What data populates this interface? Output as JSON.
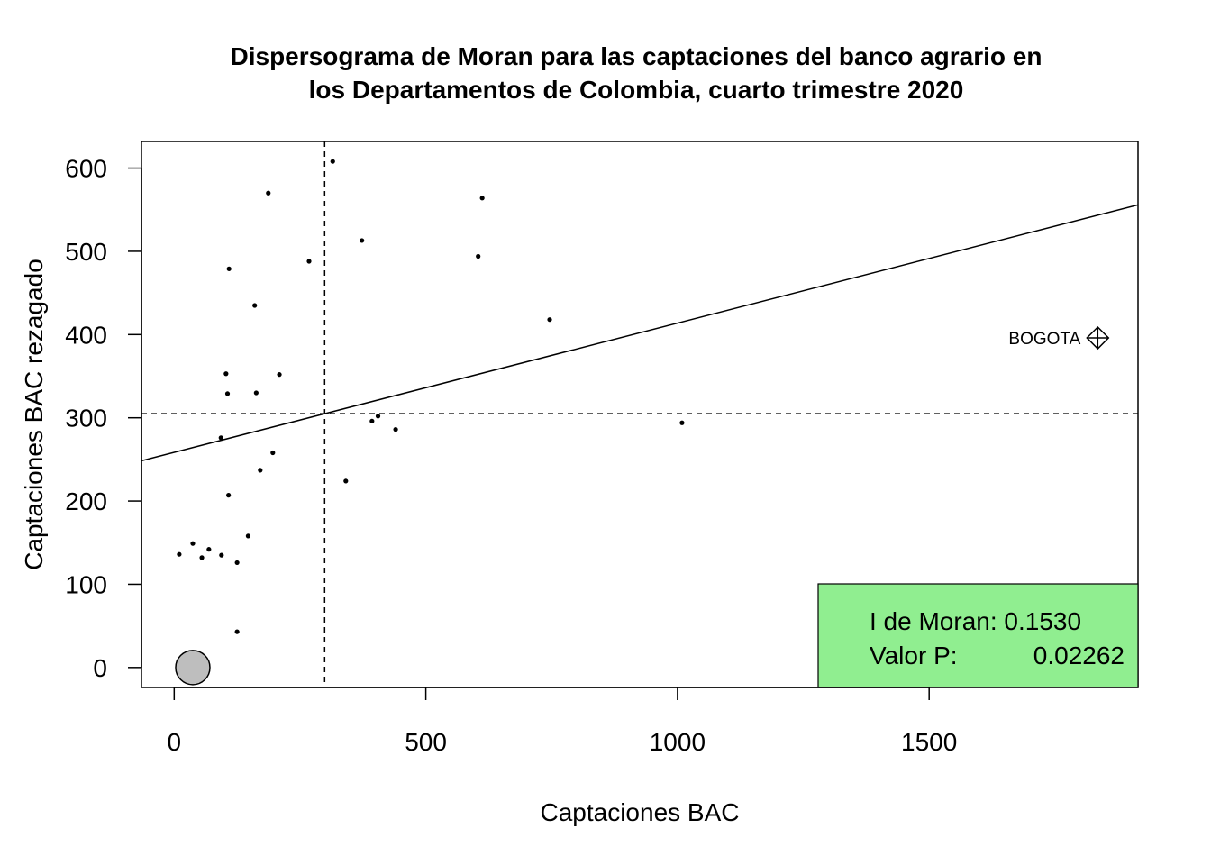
{
  "chart_data": {
    "type": "scatter",
    "title_line1": "Dispersograma de Moran para las captaciones del banco agrario en",
    "title_line2": "los Departamentos de Colombia, cuarto trimestre 2020",
    "xlabel": "Captaciones BAC",
    "ylabel": "Captaciones BAC rezagado",
    "xlim": [
      -65,
      1915
    ],
    "ylim": [
      -24,
      632
    ],
    "xticks": [
      0,
      500,
      1000,
      1500
    ],
    "yticks": [
      0,
      100,
      200,
      300,
      400,
      500,
      600
    ],
    "mean_x": 299,
    "mean_y": 305,
    "regression_line": {
      "intercept": 258.5,
      "slope": 0.1553
    },
    "points": [
      {
        "x": 315,
        "y": 608
      },
      {
        "x": 187,
        "y": 570
      },
      {
        "x": 612,
        "y": 564
      },
      {
        "x": 373,
        "y": 513
      },
      {
        "x": 604,
        "y": 494
      },
      {
        "x": 268,
        "y": 488
      },
      {
        "x": 109,
        "y": 479
      },
      {
        "x": 160,
        "y": 435
      },
      {
        "x": 746,
        "y": 418
      },
      {
        "x": 103,
        "y": 353
      },
      {
        "x": 209,
        "y": 352
      },
      {
        "x": 106,
        "y": 329
      },
      {
        "x": 163,
        "y": 330
      },
      {
        "x": 405,
        "y": 302
      },
      {
        "x": 393,
        "y": 296
      },
      {
        "x": 1009,
        "y": 294
      },
      {
        "x": 440,
        "y": 286
      },
      {
        "x": 93,
        "y": 276
      },
      {
        "x": 196,
        "y": 258
      },
      {
        "x": 171,
        "y": 237
      },
      {
        "x": 341,
        "y": 224
      },
      {
        "x": 108,
        "y": 207
      },
      {
        "x": 147,
        "y": 158
      },
      {
        "x": 37,
        "y": 149
      },
      {
        "x": 69,
        "y": 142
      },
      {
        "x": 10,
        "y": 136
      },
      {
        "x": 94,
        "y": 135
      },
      {
        "x": 55,
        "y": 132
      },
      {
        "x": 125,
        "y": 126
      },
      {
        "x": 125,
        "y": 43
      }
    ],
    "influential_points": [
      {
        "label": "BOGOTA",
        "x": 1835,
        "y": 396
      }
    ],
    "highlight_circle": {
      "x": 37,
      "y": 0
    },
    "legend": {
      "position": "bottom-right",
      "line1": "I de Moran: 0.1530",
      "line2_label": "Valor P:",
      "line2_value": "0.02262",
      "color": "#90EE90"
    },
    "grid": false
  }
}
